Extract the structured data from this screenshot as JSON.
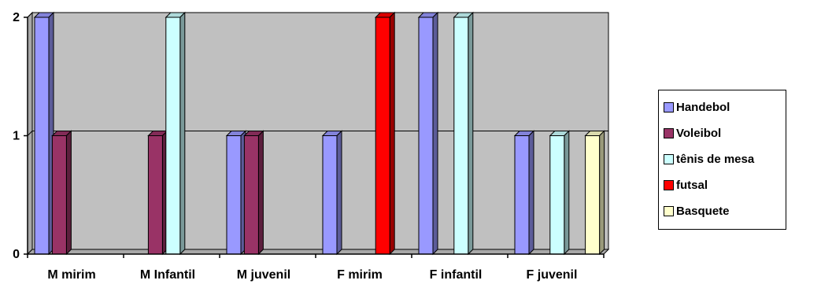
{
  "chart_data": {
    "type": "bar",
    "categories": [
      "M mirim",
      "M Infantil",
      "M juvenil",
      "F mirim",
      "F infantil",
      "F juvenil"
    ],
    "series": [
      {
        "name": "Handebol",
        "values": [
          2,
          0,
          1,
          1,
          2,
          1
        ],
        "color": "#9999FF"
      },
      {
        "name": "Voleibol",
        "values": [
          1,
          1,
          1,
          0,
          0,
          0
        ],
        "color": "#993366"
      },
      {
        "name": "tênis de mesa",
        "values": [
          0,
          2,
          0,
          0,
          2,
          1
        ],
        "color": "#CCFFFF"
      },
      {
        "name": "futsal",
        "values": [
          0,
          0,
          0,
          2,
          0,
          0
        ],
        "color": "#FF0000"
      },
      {
        "name": "Basquete",
        "values": [
          0,
          0,
          0,
          0,
          0,
          1
        ],
        "color": "#FFFFCC"
      }
    ],
    "yticks": [
      "0",
      "1",
      "2"
    ],
    "ylim": [
      0,
      2
    ],
    "title": "",
    "xlabel": "",
    "ylabel": "",
    "grid": true,
    "legend": "right",
    "plot_background": "#C0C0C0"
  }
}
